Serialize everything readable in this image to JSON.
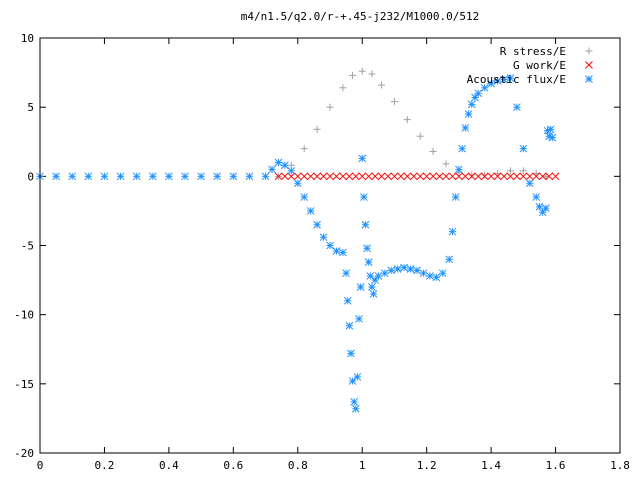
{
  "chart_data": {
    "type": "scatter",
    "title": "m4/n1.5/q2.0/r-+.45-j232/M1000.0/512",
    "xlabel": "",
    "ylabel": "",
    "xlim": [
      0,
      1.8
    ],
    "ylim": [
      -20,
      10
    ],
    "x_ticks": [
      "0",
      "0.2",
      "0.4",
      "0.6",
      "0.8",
      "1",
      "1.2",
      "1.4",
      "1.6",
      "1.8"
    ],
    "y_ticks": [
      "10",
      "5",
      "0",
      "-5",
      "-10",
      "-15",
      "-20"
    ],
    "grid": false,
    "legend_position": "top-right",
    "series": [
      {
        "name": "R stress/E",
        "marker": "plus",
        "color": "#a0a0a0",
        "x": [
          0.74,
          0.78,
          0.82,
          0.86,
          0.9,
          0.94,
          0.97,
          1.0,
          1.03,
          1.06,
          1.1,
          1.14,
          1.18,
          1.22,
          1.26,
          1.3,
          1.34,
          1.38,
          1.42,
          1.46,
          1.5,
          1.54,
          1.57
        ],
        "y": [
          0.0,
          0.8,
          2.0,
          3.4,
          5.0,
          6.4,
          7.3,
          7.6,
          7.4,
          6.6,
          5.4,
          4.1,
          2.9,
          1.8,
          0.9,
          0.3,
          0.1,
          0.1,
          0.2,
          0.4,
          0.4,
          0.2,
          0.0
        ]
      },
      {
        "name": "G work/E",
        "marker": "cross",
        "color": "#ff0000",
        "x": [
          0.74,
          0.76,
          0.78,
          0.8,
          0.82,
          0.84,
          0.86,
          0.88,
          0.9,
          0.92,
          0.94,
          0.96,
          0.98,
          1.0,
          1.02,
          1.04,
          1.06,
          1.08,
          1.1,
          1.12,
          1.14,
          1.16,
          1.18,
          1.2,
          1.22,
          1.24,
          1.26,
          1.28,
          1.3,
          1.32,
          1.34,
          1.36,
          1.38,
          1.4,
          1.42,
          1.44,
          1.46,
          1.48,
          1.5,
          1.52,
          1.54,
          1.56,
          1.58,
          1.6
        ],
        "y": [
          0,
          0,
          0,
          0,
          0,
          0,
          0,
          0,
          0,
          0,
          0,
          0,
          0,
          0,
          0,
          0,
          0,
          0,
          0,
          0,
          0,
          0,
          0,
          0,
          0,
          0,
          0,
          0,
          0,
          0,
          0,
          0,
          0,
          0,
          0,
          0,
          0,
          0,
          0,
          0,
          0,
          0,
          0,
          0
        ]
      },
      {
        "name": "Acoustic flux/E",
        "marker": "star",
        "color": "#1e90ff",
        "x": [
          0.0,
          0.05,
          0.1,
          0.15,
          0.2,
          0.25,
          0.3,
          0.35,
          0.4,
          0.45,
          0.5,
          0.55,
          0.6,
          0.65,
          0.7,
          0.72,
          0.74,
          0.76,
          0.78,
          0.8,
          0.82,
          0.84,
          0.86,
          0.88,
          0.9,
          0.92,
          0.94,
          0.95,
          0.955,
          0.96,
          0.965,
          0.97,
          0.975,
          0.98,
          0.985,
          0.99,
          0.995,
          1.0,
          1.005,
          1.01,
          1.015,
          1.02,
          1.025,
          1.03,
          1.035,
          1.04,
          1.05,
          1.07,
          1.09,
          1.11,
          1.13,
          1.15,
          1.17,
          1.19,
          1.21,
          1.23,
          1.25,
          1.27,
          1.28,
          1.29,
          1.3,
          1.31,
          1.32,
          1.33,
          1.34,
          1.35,
          1.36,
          1.38,
          1.4,
          1.42,
          1.44,
          1.46,
          1.48,
          1.5,
          1.52,
          1.54,
          1.55,
          1.56,
          1.57,
          1.575,
          1.58,
          1.585,
          1.59
        ],
        "y": [
          0,
          0,
          0,
          0,
          0,
          0,
          0,
          0,
          0,
          0,
          0,
          0,
          0,
          0,
          0,
          0.5,
          1.0,
          0.8,
          0.4,
          -0.5,
          -1.5,
          -2.5,
          -3.5,
          -4.4,
          -5.0,
          -5.4,
          -5.5,
          -7.0,
          -9.0,
          -10.8,
          -12.8,
          -14.8,
          -16.3,
          -16.8,
          -14.5,
          -10.3,
          -8.0,
          1.3,
          -1.5,
          -3.5,
          -5.2,
          -6.2,
          -7.2,
          -8.0,
          -8.5,
          -7.5,
          -7.2,
          -7.0,
          -6.8,
          -6.7,
          -6.6,
          -6.7,
          -6.8,
          -7.0,
          -7.2,
          -7.3,
          -7.0,
          -6.0,
          -4.0,
          -1.5,
          0.5,
          2.0,
          3.5,
          4.5,
          5.2,
          5.7,
          6.0,
          6.4,
          6.7,
          6.9,
          7.0,
          7.1,
          5.0,
          2.0,
          -0.5,
          -1.5,
          -2.2,
          -2.6,
          -2.3,
          3.3,
          2.9,
          3.4,
          2.8
        ]
      }
    ]
  }
}
